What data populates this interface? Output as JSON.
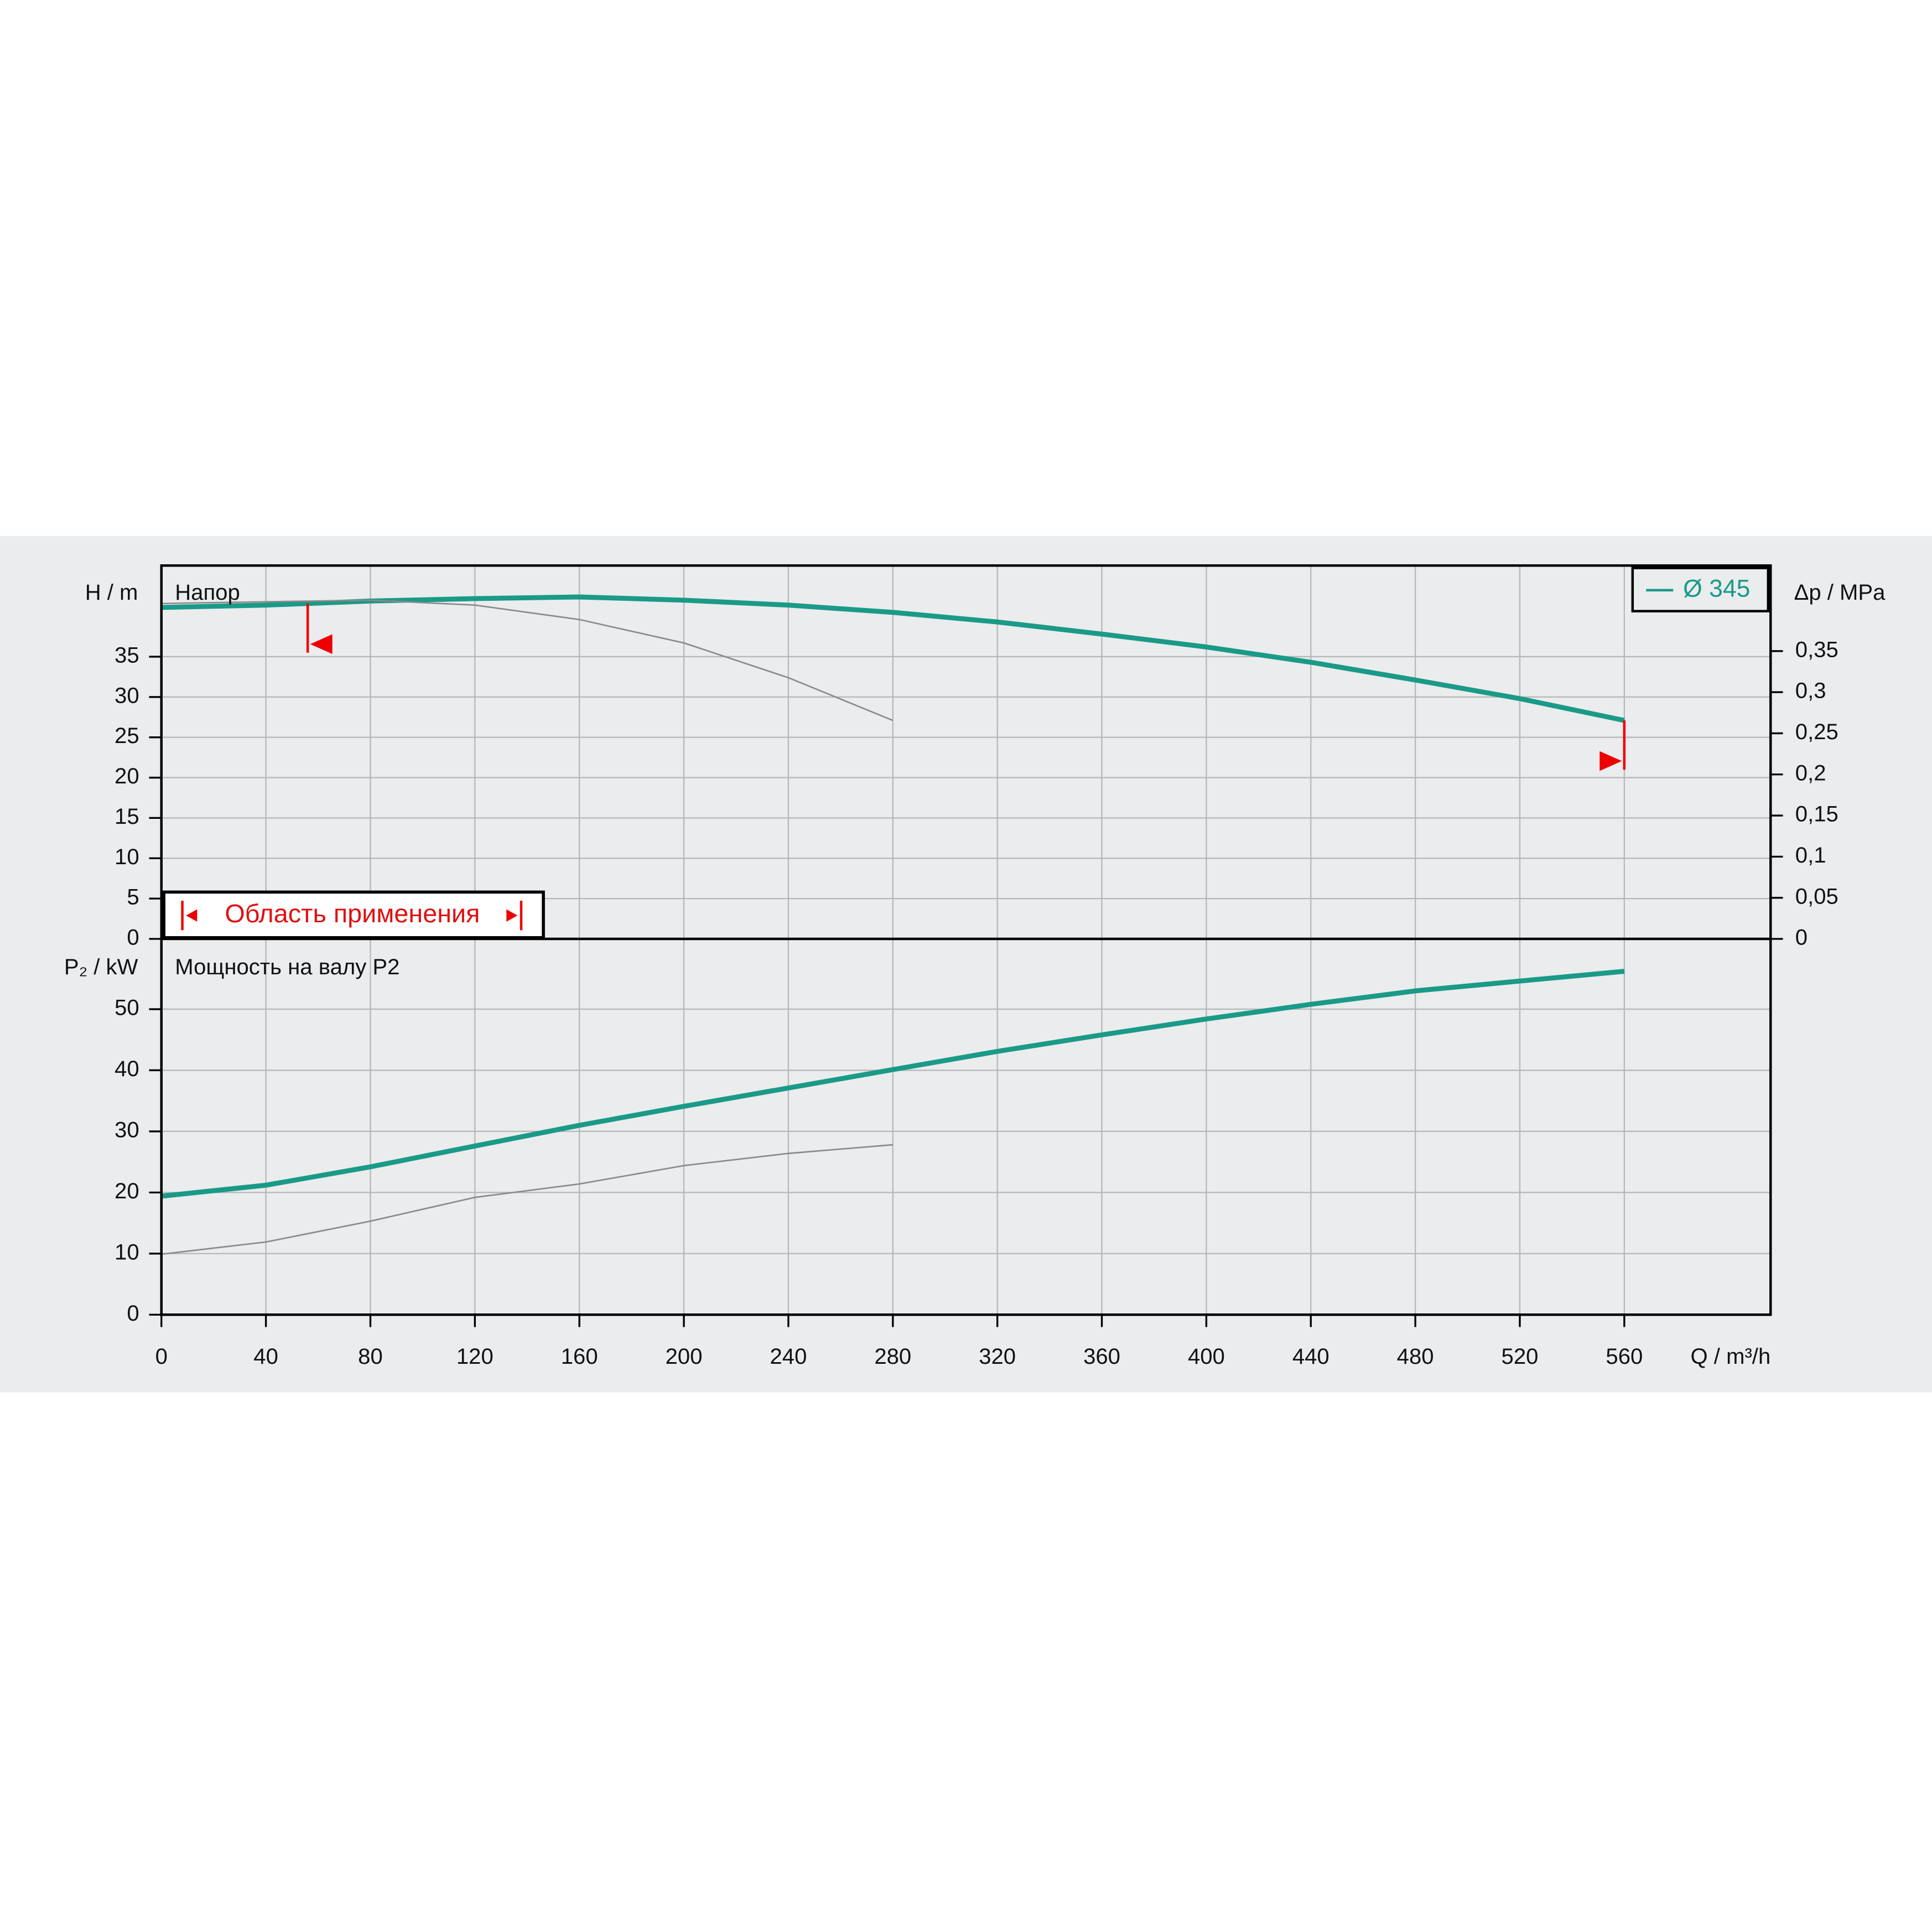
{
  "chart_data": [
    {
      "type": "line",
      "title": "Напор",
      "ylabel": "H / m",
      "y2label": "Δp / MPa",
      "xlim": [
        0,
        616
      ],
      "ylim": [
        0,
        46.3
      ],
      "yticks": [
        0,
        5,
        10,
        15,
        20,
        25,
        30,
        35
      ],
      "y2lim": [
        0,
        0.454
      ],
      "y2ticks": [
        0,
        {
          "value": 0.05,
          "label": "0,05"
        },
        {
          "value": 0.1,
          "label": "0,1"
        },
        {
          "value": 0.15,
          "label": "0,15"
        },
        {
          "value": 0.2,
          "label": "0,2"
        },
        {
          "value": 0.25,
          "label": "0,25"
        },
        {
          "value": 0.3,
          "label": "0,3"
        },
        {
          "value": 0.35,
          "label": "0,35"
        }
      ],
      "grid": true,
      "legend": "top-right",
      "annotation": "Область применения",
      "range_markers": [
        56,
        560
      ],
      "series": [
        {
          "name": "Ø 345",
          "color": "#1a9a87",
          "x": [
            0,
            40,
            80,
            120,
            160,
            200,
            240,
            280,
            320,
            360,
            400,
            440,
            480,
            520,
            560
          ],
          "values": [
            41.1,
            41.4,
            41.9,
            42.2,
            42.4,
            42.0,
            41.4,
            40.5,
            39.3,
            37.8,
            36.2,
            34.3,
            32.1,
            29.8,
            27.1
          ]
        },
        {
          "color": "#8a8a8a",
          "x": [
            0,
            40,
            80,
            120,
            160,
            200,
            240,
            280
          ],
          "values": [
            41.6,
            41.8,
            42.0,
            41.4,
            39.6,
            36.7,
            32.4,
            27.1
          ]
        }
      ]
    },
    {
      "type": "line",
      "title": "Мощность на валу P2",
      "ylabel": "P₂ / kW",
      "xlabel": "Q / m³/h",
      "xlim": [
        0,
        616
      ],
      "xticks": [
        0,
        40,
        80,
        120,
        160,
        200,
        240,
        280,
        320,
        360,
        400,
        440,
        480,
        520,
        560
      ],
      "ylim": [
        0,
        61.5
      ],
      "yticks": [
        0,
        10,
        20,
        30,
        40,
        50
      ],
      "grid": true,
      "series": [
        {
          "color": "#1a9a87",
          "x": [
            0,
            40,
            80,
            120,
            160,
            200,
            240,
            280,
            320,
            360,
            400,
            440,
            480,
            520,
            560
          ],
          "values": [
            19.4,
            21.2,
            24.2,
            27.6,
            31.0,
            34.1,
            37.1,
            40.1,
            43.1,
            45.8,
            48.4,
            50.8,
            53.0,
            54.6,
            56.2
          ]
        },
        {
          "color": "#8a8a8a",
          "x": [
            0,
            40,
            80,
            120,
            160,
            200,
            240,
            280
          ],
          "values": [
            9.9,
            11.9,
            15.3,
            19.2,
            21.4,
            24.4,
            26.4,
            27.8
          ]
        }
      ]
    }
  ]
}
